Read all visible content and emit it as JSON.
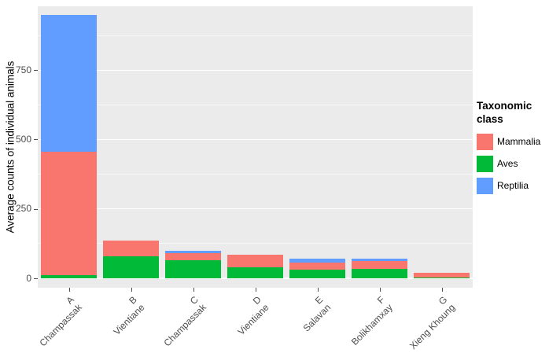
{
  "chart_data": {
    "type": "bar",
    "stacked": true,
    "title": "",
    "xlabel": "",
    "ylabel": "Average counts of individual animals",
    "ylim": [
      0,
      980
    ],
    "yticks": [
      0,
      250,
      500,
      750
    ],
    "yticks_minor": [
      125,
      375,
      625,
      875
    ],
    "grid": true,
    "legend_title": "Taxonomic class",
    "legend_position": "right",
    "categories": [
      {
        "code": "A",
        "province": "Champassak"
      },
      {
        "code": "B",
        "province": "Vientiane"
      },
      {
        "code": "C",
        "province": "Champassak"
      },
      {
        "code": "D",
        "province": "Vientiane"
      },
      {
        "code": "E",
        "province": "Salavan"
      },
      {
        "code": "F",
        "province": "Bolikhamxay"
      },
      {
        "code": "G",
        "province": "Xieng Khoung"
      }
    ],
    "series": [
      {
        "name": "Mammalia",
        "color": "#F8766D",
        "values": [
          445,
          55,
          25,
          45,
          27,
          27,
          17
        ]
      },
      {
        "name": "Aves",
        "color": "#00BA38",
        "values": [
          10,
          80,
          65,
          40,
          30,
          35,
          3
        ]
      },
      {
        "name": "Reptilia",
        "color": "#619CFF",
        "values": [
          495,
          0,
          10,
          0,
          15,
          8,
          0
        ]
      }
    ],
    "stack_order_bottom_to_top": [
      "Aves",
      "Mammalia",
      "Reptilia"
    ],
    "colors": {
      "panel_bg": "#EBEBEB",
      "grid": "#FFFFFF",
      "axis_text": "#4D4D4D",
      "text": "#000000"
    }
  }
}
